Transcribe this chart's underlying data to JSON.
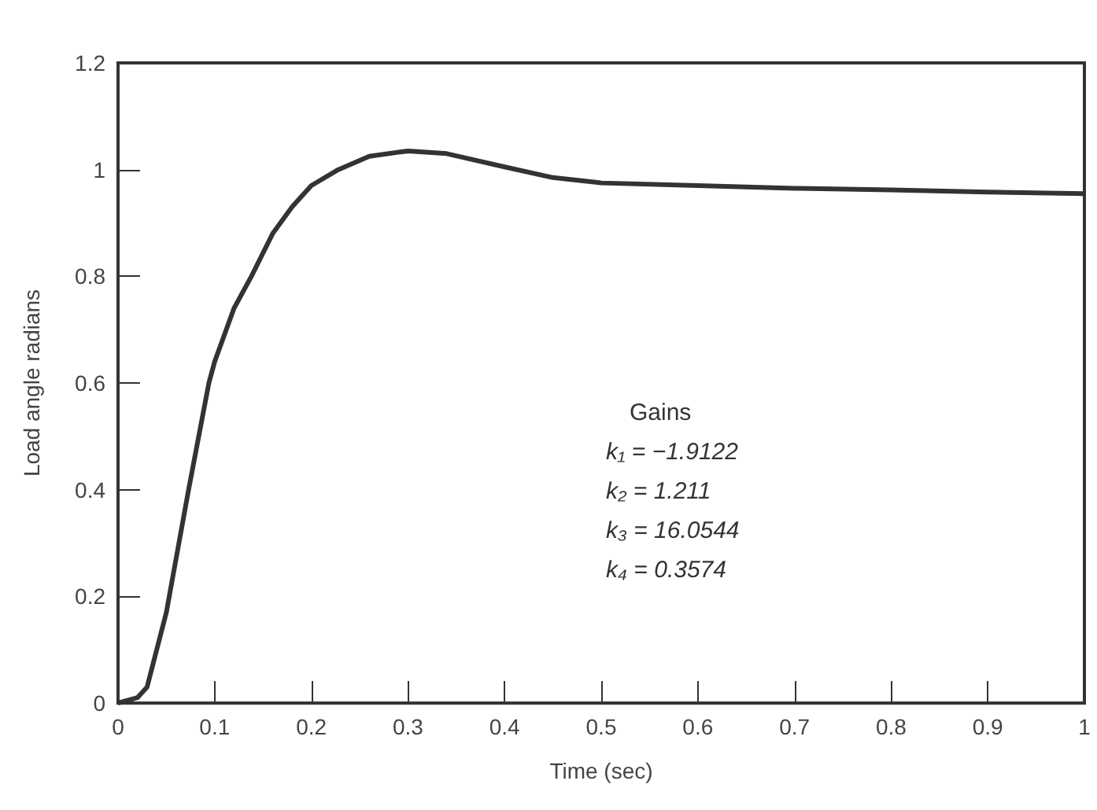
{
  "chart_data": {
    "type": "line",
    "xlabel": "Time (sec)",
    "ylabel": "Load angle radians",
    "x": [
      0,
      0.02,
      0.03,
      0.05,
      0.073,
      0.094,
      0.1,
      0.12,
      0.138,
      0.16,
      0.18,
      0.2,
      0.228,
      0.26,
      0.3,
      0.34,
      0.4,
      0.45,
      0.5,
      0.6,
      0.7,
      0.8,
      0.9,
      1.0
    ],
    "series": [
      {
        "color": "#333333",
        "values": [
          0,
          0.01,
          0.03,
          0.17,
          0.4,
          0.6,
          0.64,
          0.74,
          0.8,
          0.88,
          0.93,
          0.97,
          1.0,
          1.025,
          1.035,
          1.03,
          1.005,
          0.985,
          0.975,
          0.97,
          0.965,
          0.962,
          0.958,
          0.955
        ]
      }
    ],
    "xlim": [
      0,
      1
    ],
    "xticks": [
      0,
      0.1,
      0.2,
      0.3,
      0.4,
      0.5,
      0.6,
      0.7,
      0.8,
      0.9,
      1
    ],
    "ylim": [
      0,
      1.2
    ],
    "yticks": [
      0,
      0.2,
      0.4,
      0.6,
      0.8,
      1,
      1.2
    ],
    "annotations": [
      "Gains",
      "k₁ = −1.9122",
      "k₂ = 1.211",
      "k₃ = 16.0544",
      "k₄ = 0.3574"
    ],
    "grid": false,
    "marker": "none",
    "line_style": "solid"
  }
}
